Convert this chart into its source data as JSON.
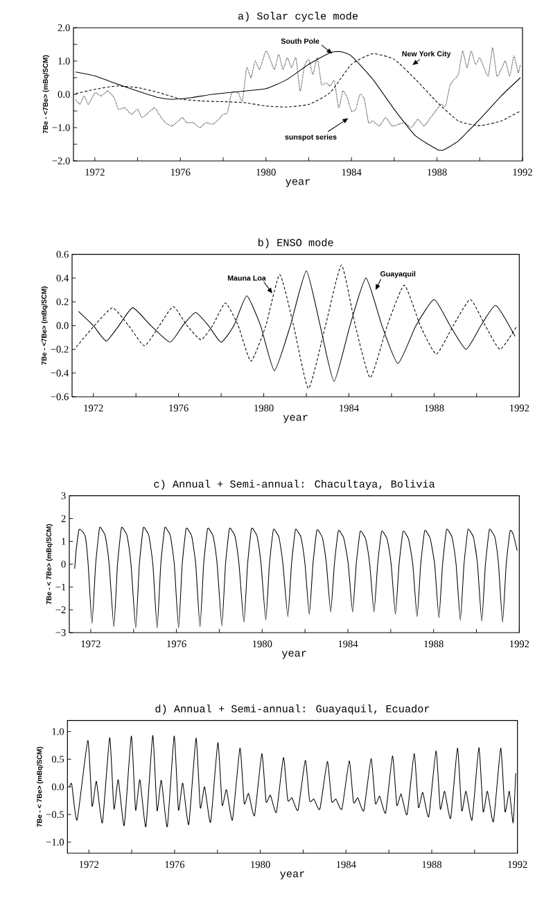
{
  "chart_data": [
    {
      "type": "line",
      "title": "a) Solar cycle mode",
      "xlabel": "year",
      "ylabel": "7Be - <7Be> (mBq/SCM)",
      "xlim": [
        1971,
        1992
      ],
      "ylim": [
        -2,
        2
      ],
      "xticks": [
        1972,
        {
          "value": 1974,
          "label": null
        },
        1976,
        {
          "value": 1978,
          "label": null
        },
        1980,
        {
          "value": 1982,
          "label": null
        },
        1984,
        {
          "value": 1986,
          "label": null
        },
        1988,
        {
          "value": 1990,
          "label": null
        },
        1992
      ],
      "yticks": [
        {
          "value": -2,
          "label": "−2.0"
        },
        {
          "value": -1.5,
          "label": null
        },
        {
          "value": -1,
          "label": "−1.0"
        },
        {
          "value": -0.5,
          "label": null
        },
        {
          "value": 0,
          "label": "0.0"
        },
        {
          "value": 0.5,
          "label": null
        },
        {
          "value": 1,
          "label": "1.0"
        },
        {
          "value": 1.5,
          "label": null
        },
        {
          "value": 2,
          "label": "2.0"
        }
      ],
      "series": [
        {
          "name": "South Pole",
          "color": "#000000",
          "line_style": "solid",
          "x": [
            1971.1,
            1972,
            1973,
            1974,
            1975,
            1975.6,
            1976.5,
            1977.5,
            1979,
            1980,
            1981,
            1982,
            1983,
            1983.5,
            1984,
            1985,
            1986,
            1987,
            1988,
            1988.3,
            1989,
            1990,
            1991,
            1991.9
          ],
          "values": [
            0.67,
            0.55,
            0.32,
            0.1,
            -0.1,
            -0.15,
            -0.1,
            0.0,
            0.1,
            0.17,
            0.45,
            0.9,
            1.25,
            1.28,
            1.15,
            0.45,
            -0.45,
            -1.25,
            -1.65,
            -1.67,
            -1.4,
            -0.75,
            -0.05,
            0.5
          ]
        },
        {
          "name": "New York City",
          "color": "#000000",
          "line_style": "dashed",
          "x": [
            1971.1,
            1972,
            1973,
            1974,
            1975,
            1976,
            1977,
            1978,
            1979,
            1980,
            1981,
            1982,
            1983,
            1984,
            1985,
            1986,
            1987,
            1988,
            1989,
            1990,
            1991,
            1991.9
          ],
          "values": [
            0.02,
            0.15,
            0.25,
            0.2,
            0.05,
            -0.14,
            -0.2,
            -0.22,
            -0.25,
            -0.35,
            -0.38,
            -0.3,
            0.05,
            0.9,
            1.22,
            1.05,
            0.45,
            -0.23,
            -0.8,
            -0.94,
            -0.8,
            -0.5
          ]
        },
        {
          "name": "sunspot series",
          "color": "#000000",
          "line_style": "dotted",
          "x": [
            1971.1,
            1971.3,
            1971.5,
            1971.7,
            1972.0,
            1972.3,
            1972.6,
            1972.9,
            1973.1,
            1973.4,
            1973.7,
            1974.0,
            1974.2,
            1974.5,
            1974.8,
            1975.0,
            1975.3,
            1975.6,
            1975.9,
            1976.1,
            1976.3,
            1976.6,
            1976.9,
            1977.2,
            1977.5,
            1977.8,
            1978.0,
            1978.2,
            1978.4,
            1978.7,
            1978.9,
            1979.1,
            1979.3,
            1979.5,
            1979.7,
            1980.0,
            1980.2,
            1980.4,
            1980.6,
            1980.8,
            1981.0,
            1981.2,
            1981.4,
            1981.6,
            1981.8,
            1982.0,
            1982.2,
            1982.4,
            1982.6,
            1982.8,
            1983.0,
            1983.2,
            1983.4,
            1983.6,
            1983.8,
            1984.0,
            1984.2,
            1984.4,
            1984.6,
            1984.8,
            1985.0,
            1985.3,
            1985.6,
            1985.9,
            1986.2,
            1986.5,
            1986.8,
            1987.1,
            1987.4,
            1987.7,
            1988.0,
            1988.2,
            1988.4,
            1988.6,
            1988.8,
            1989.0,
            1989.2,
            1989.4,
            1989.6,
            1989.8,
            1990.0,
            1990.2,
            1990.4,
            1990.6,
            1990.8,
            1991.0,
            1991.2,
            1991.4,
            1991.6,
            1991.8,
            1991.9
          ],
          "values": [
            -0.15,
            -0.3,
            -0.05,
            -0.3,
            0.05,
            -0.05,
            0.1,
            -0.1,
            -0.45,
            -0.4,
            -0.6,
            -0.45,
            -0.7,
            -0.55,
            -0.4,
            -0.6,
            -0.85,
            -0.95,
            -0.8,
            -0.7,
            -0.85,
            -0.85,
            -1.0,
            -0.85,
            -0.9,
            -0.75,
            -0.6,
            -0.55,
            0.05,
            0.05,
            -0.2,
            0.8,
            0.5,
            1.0,
            0.75,
            1.3,
            1.05,
            0.75,
            1.2,
            0.75,
            1.1,
            0.8,
            1.1,
            0.1,
            0.85,
            1.05,
            0.6,
            1.1,
            0.3,
            0.35,
            0.25,
            0.4,
            -0.4,
            0.1,
            -0.1,
            -0.5,
            -0.45,
            0.0,
            -0.15,
            -0.85,
            -0.8,
            -0.95,
            -0.7,
            -0.95,
            -0.9,
            -0.85,
            -1.0,
            -0.75,
            -0.95,
            -0.7,
            -0.45,
            -0.3,
            -0.35,
            0.25,
            0.45,
            0.6,
            1.3,
            0.8,
            1.3,
            0.9,
            1.1,
            0.8,
            0.55,
            1.4,
            0.55,
            0.75,
            1.0,
            0.55,
            1.15,
            0.65,
            0.9
          ]
        }
      ]
    },
    {
      "type": "line",
      "title": "b) ENSO mode",
      "xlabel": "year",
      "ylabel": "7Be - <7Be> (mBq/SCM)",
      "xlim": [
        1971,
        1992
      ],
      "ylim": [
        -0.6,
        0.6
      ],
      "xticks": [
        1972,
        {
          "value": 1974,
          "label": null
        },
        1976,
        {
          "value": 1978,
          "label": null
        },
        1980,
        {
          "value": 1982,
          "label": null
        },
        1984,
        {
          "value": 1986,
          "label": null
        },
        1988,
        {
          "value": 1990,
          "label": null
        },
        1992
      ],
      "yticks": [
        {
          "value": -0.6,
          "label": "−0.6"
        },
        {
          "value": -0.4,
          "label": "−0.4"
        },
        {
          "value": -0.2,
          "label": "−0.2"
        },
        {
          "value": 0,
          "label": "0.0"
        },
        0.2,
        0.4,
        0.6
      ],
      "series": [
        {
          "name": "Mauna Loa",
          "color": "#000000",
          "line_style": "dashed",
          "x": [
            1971.2,
            1972.05,
            1972.9,
            1973.65,
            1974.4,
            1975.1,
            1975.75,
            1976.4,
            1977.05,
            1977.6,
            1978.2,
            1978.8,
            1979.4,
            1980.1,
            1980.75,
            1981.4,
            1982.1,
            1982.9,
            1983.65,
            1984.3,
            1985.0,
            1985.8,
            1986.6,
            1987.35,
            1988.1,
            1988.9,
            1989.7,
            1990.4,
            1991.1,
            1991.9
          ],
          "values": [
            -0.18,
            0,
            0.15,
            0,
            -0.17,
            0,
            0.16,
            0,
            -0.12,
            0,
            0.19,
            0,
            -0.3,
            0,
            0.43,
            0,
            -0.53,
            0,
            0.51,
            0,
            -0.44,
            0,
            0.34,
            0,
            -0.24,
            0,
            0.22,
            0,
            -0.2,
            0.0
          ]
        },
        {
          "name": "Guayaquil",
          "color": "#000000",
          "line_style": "solid",
          "x": [
            1971.3,
            1972.0,
            1972.6,
            1973.2,
            1973.85,
            1974.7,
            1975.6,
            1976.2,
            1976.8,
            1977.4,
            1978.0,
            1978.6,
            1979.2,
            1979.85,
            1980.5,
            1981.25,
            1982.0,
            1982.65,
            1983.3,
            1984.05,
            1984.8,
            1985.55,
            1986.3,
            1987.15,
            1988.0,
            1988.75,
            1989.5,
            1990.2,
            1990.9,
            1991.8
          ],
          "values": [
            0.12,
            0,
            -0.13,
            0,
            0.15,
            0,
            -0.14,
            0,
            0.11,
            0,
            -0.14,
            0,
            0.25,
            0,
            -0.38,
            0,
            0.46,
            0,
            -0.47,
            0,
            0.4,
            0,
            -0.32,
            0,
            0.22,
            0,
            -0.2,
            0,
            0.17,
            -0.09
          ]
        }
      ]
    },
    {
      "type": "line",
      "title": "c) Annual + Semi-annual: Chacultaya, Bolivia",
      "xlabel": "year",
      "ylabel": "7Be - < 7Be> (mBq/SCM)",
      "xlim": [
        1971,
        1992
      ],
      "ylim": [
        -3,
        3
      ],
      "color": "#000000",
      "xticks": [
        1972,
        {
          "value": 1974,
          "label": null
        },
        1976,
        {
          "value": 1978,
          "label": null
        },
        1980,
        {
          "value": 1982,
          "label": null
        },
        1984,
        {
          "value": 1986,
          "label": null
        },
        1988,
        {
          "value": 1990,
          "label": null
        },
        1992
      ],
      "yticks": [
        {
          "value": -3,
          "label": "−3"
        },
        {
          "value": -2,
          "label": "−2"
        },
        {
          "value": -1,
          "label": "−1"
        },
        0,
        1,
        2,
        3
      ],
      "x": [
        1971.25,
        1971.32,
        1971.45,
        1971.6,
        1971.75,
        1971.88,
        1972.06,
        1972.23,
        1972.41,
        1972.56,
        1972.68,
        1972.86,
        1973.08,
        1973.25,
        1973.43,
        1973.58,
        1973.7,
        1973.88,
        1974.1,
        1974.27,
        1974.45,
        1974.6,
        1974.72,
        1974.9,
        1975.1,
        1975.27,
        1975.45,
        1975.6,
        1975.72,
        1975.9,
        1976.1,
        1976.27,
        1976.45,
        1976.6,
        1976.72,
        1976.9,
        1977.1,
        1977.27,
        1977.45,
        1977.6,
        1977.72,
        1977.9,
        1978.12,
        1978.29,
        1978.47,
        1978.62,
        1978.74,
        1978.92,
        1979.15,
        1979.32,
        1979.5,
        1979.65,
        1979.77,
        1979.95,
        1980.17,
        1980.34,
        1980.52,
        1980.67,
        1980.79,
        1980.97,
        1981.2,
        1981.37,
        1981.55,
        1981.7,
        1981.82,
        1982.0,
        1982.2,
        1982.37,
        1982.55,
        1982.7,
        1982.82,
        1983.0,
        1983.2,
        1983.37,
        1983.55,
        1983.7,
        1983.82,
        1984.02,
        1984.22,
        1984.39,
        1984.57,
        1984.72,
        1984.84,
        1985.02,
        1985.22,
        1985.39,
        1985.57,
        1985.72,
        1985.84,
        1986.02,
        1986.22,
        1986.39,
        1986.57,
        1986.72,
        1986.84,
        1987.03,
        1987.23,
        1987.4,
        1987.58,
        1987.73,
        1987.85,
        1988.05,
        1988.25,
        1988.42,
        1988.6,
        1988.75,
        1988.87,
        1989.05,
        1989.25,
        1989.42,
        1989.6,
        1989.75,
        1989.87,
        1990.05,
        1990.25,
        1990.42,
        1990.6,
        1990.75,
        1990.87,
        1991.03,
        1991.22,
        1991.39,
        1991.57,
        1991.72,
        1991.9
      ],
      "values": [
        -0.2,
        0.6,
        1.5,
        1.45,
        1.2,
        0,
        -2.6,
        0,
        1.58,
        1.46,
        1.23,
        0,
        -2.75,
        0,
        1.58,
        1.46,
        1.23,
        0,
        -2.8,
        0,
        1.58,
        1.46,
        1.23,
        0,
        -2.8,
        0,
        1.58,
        1.46,
        1.23,
        0,
        -2.8,
        0,
        1.55,
        1.43,
        1.2,
        0,
        -2.75,
        0,
        1.55,
        1.43,
        1.2,
        0,
        -2.7,
        0,
        1.55,
        1.43,
        1.2,
        0,
        -2.55,
        0,
        1.55,
        1.43,
        1.2,
        0,
        -2.45,
        0,
        1.5,
        1.38,
        1.15,
        0,
        -2.3,
        0,
        1.5,
        1.38,
        1.15,
        0,
        -2.2,
        0,
        1.48,
        1.36,
        1.13,
        0,
        -2.1,
        0,
        1.45,
        1.33,
        1.1,
        0,
        -2.1,
        0,
        1.42,
        1.3,
        1.07,
        0,
        -2.1,
        0,
        1.42,
        1.3,
        1.07,
        0,
        -2.2,
        0,
        1.42,
        1.3,
        1.07,
        0,
        -2.3,
        0,
        1.45,
        1.33,
        1.1,
        0,
        -2.35,
        0,
        1.5,
        1.38,
        1.15,
        0,
        -2.45,
        0,
        1.5,
        1.38,
        1.15,
        0,
        -2.5,
        0,
        1.5,
        1.38,
        1.15,
        0,
        -2.55,
        0,
        1.45,
        1.3,
        0.6
      ]
    },
    {
      "type": "line",
      "title": "d) Annual + Semi-annual: Guayaquil, Ecuador",
      "xlabel": "year",
      "ylabel": "7Be - < 7Be> (mBq/SCM)",
      "xlim": [
        1971,
        1992
      ],
      "ylim": [
        -1.2,
        1.2
      ],
      "color": "#000000",
      "xticks": [
        1972,
        {
          "value": 1974,
          "label": null
        },
        1976,
        {
          "value": 1978,
          "label": null
        },
        1980,
        {
          "value": 1982,
          "label": null
        },
        1984,
        {
          "value": 1986,
          "label": null
        },
        1988,
        {
          "value": 1990,
          "label": null
        },
        1992
      ],
      "yticks": [
        {
          "value": -1,
          "label": "−1.0"
        },
        {
          "value": -0.5,
          "label": "−0.5"
        },
        {
          "value": 0,
          "label": "0.0"
        },
        0.5,
        {
          "value": 1,
          "label": "1.0"
        }
      ],
      "x": [
        1971.1,
        1971.2,
        1971.45,
        1971.95,
        1972.15,
        1972.35,
        1972.63,
        1972.97,
        1973.17,
        1973.37,
        1973.65,
        1973.98,
        1974.18,
        1974.38,
        1974.66,
        1974.98,
        1975.18,
        1975.38,
        1975.66,
        1975.98,
        1976.18,
        1976.38,
        1976.66,
        1977.0,
        1977.2,
        1977.4,
        1977.68,
        1978.02,
        1978.22,
        1978.42,
        1978.7,
        1979.05,
        1979.25,
        1979.45,
        1979.73,
        1980.07,
        1980.27,
        1980.47,
        1980.75,
        1981.08,
        1981.28,
        1981.48,
        1981.76,
        1982.1,
        1982.3,
        1982.5,
        1982.78,
        1983.13,
        1983.33,
        1983.53,
        1983.81,
        1984.15,
        1984.35,
        1984.55,
        1984.83,
        1985.17,
        1985.37,
        1985.57,
        1985.85,
        1986.17,
        1986.37,
        1986.57,
        1986.85,
        1987.18,
        1987.38,
        1987.58,
        1987.86,
        1988.2,
        1988.4,
        1988.6,
        1988.88,
        1989.2,
        1989.4,
        1989.6,
        1989.88,
        1990.2,
        1990.4,
        1990.6,
        1990.88,
        1991.22,
        1991.42,
        1991.62,
        1991.8,
        1991.92
      ],
      "values": [
        0.0,
        0.05,
        -0.6,
        0.84,
        -0.35,
        0.1,
        -0.65,
        0.89,
        -0.4,
        0.13,
        -0.7,
        0.92,
        -0.42,
        0.13,
        -0.72,
        0.93,
        -0.43,
        0.12,
        -0.72,
        0.92,
        -0.42,
        0.07,
        -0.68,
        0.88,
        -0.38,
        0.0,
        -0.64,
        0.8,
        -0.33,
        -0.05,
        -0.6,
        0.7,
        -0.3,
        -0.12,
        -0.52,
        0.6,
        -0.27,
        -0.15,
        -0.46,
        0.53,
        -0.24,
        -0.2,
        -0.42,
        0.48,
        -0.25,
        -0.22,
        -0.4,
        0.46,
        -0.26,
        -0.22,
        -0.4,
        0.47,
        -0.28,
        -0.2,
        -0.43,
        0.51,
        -0.3,
        -0.17,
        -0.47,
        0.56,
        -0.33,
        -0.13,
        -0.5,
        0.6,
        -0.37,
        -0.1,
        -0.54,
        0.65,
        -0.4,
        -0.08,
        -0.57,
        0.7,
        -0.43,
        -0.08,
        -0.6,
        0.71,
        -0.45,
        -0.08,
        -0.63,
        0.7,
        -0.45,
        -0.08,
        -0.65,
        0.25
      ]
    }
  ]
}
